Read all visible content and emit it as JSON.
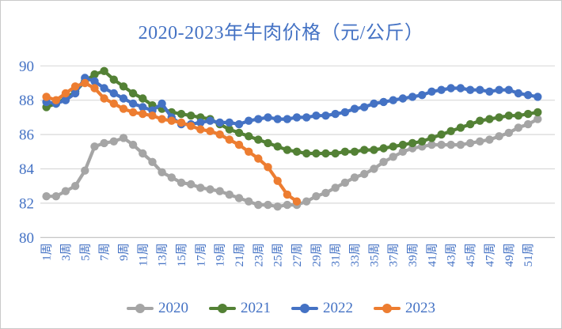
{
  "styles": {
    "text_color": "#4472C4",
    "grid_color": "#D9D9D9",
    "axis_color": "#BFBFBF",
    "background": "#FFFFFF"
  },
  "chart_data": {
    "type": "line",
    "title": "2020-2023年牛肉价格（元/公斤）",
    "xlabel": "",
    "ylabel": "",
    "x_unit": "周",
    "ylim": [
      80,
      90
    ],
    "y_ticks": [
      90,
      88,
      86,
      84,
      82,
      80
    ],
    "x_weeks": [
      1,
      52
    ],
    "x_tick_step": 2,
    "x_tick_labels": [
      "1周",
      "3周",
      "5周",
      "7周",
      "9周",
      "11周",
      "13周",
      "15周",
      "17周",
      "19周",
      "21周",
      "23周",
      "25周",
      "27周",
      "29周",
      "31周",
      "33周",
      "35周",
      "37周",
      "39周",
      "41周",
      "43周",
      "45周",
      "47周",
      "49周",
      "51周"
    ],
    "grid": "horizontal",
    "legend_position": "bottom",
    "marker": "circle",
    "series": [
      {
        "name": "2020",
        "color": "#A5A5A5",
        "start_week": 1,
        "values": [
          82.4,
          82.4,
          82.7,
          83.0,
          83.9,
          85.3,
          85.5,
          85.6,
          85.8,
          85.4,
          84.9,
          84.4,
          83.8,
          83.5,
          83.2,
          83.1,
          82.9,
          82.8,
          82.7,
          82.5,
          82.3,
          82.1,
          81.9,
          81.9,
          81.8,
          81.9,
          81.9,
          82.1,
          82.4,
          82.6,
          82.9,
          83.2,
          83.5,
          83.7,
          84.0,
          84.4,
          84.7,
          85.0,
          85.2,
          85.3,
          85.4,
          85.4,
          85.4,
          85.4,
          85.5,
          85.6,
          85.7,
          85.9,
          86.1,
          86.4,
          86.6,
          86.9
        ]
      },
      {
        "name": "2021",
        "color": "#538135",
        "start_week": 1,
        "values": [
          87.6,
          87.8,
          88.1,
          88.5,
          89.1,
          89.5,
          89.7,
          89.2,
          88.8,
          88.4,
          88.1,
          87.7,
          87.5,
          87.3,
          87.2,
          87.1,
          87.0,
          86.9,
          86.6,
          86.3,
          86.1,
          85.9,
          85.7,
          85.5,
          85.3,
          85.1,
          85.0,
          84.9,
          84.9,
          84.9,
          84.9,
          85.0,
          85.0,
          85.1,
          85.1,
          85.2,
          85.3,
          85.4,
          85.5,
          85.6,
          85.8,
          86.0,
          86.2,
          86.4,
          86.6,
          86.8,
          86.9,
          87.0,
          87.1,
          87.1,
          87.2,
          87.3
        ]
      },
      {
        "name": "2022",
        "color": "#4472C4",
        "start_week": 1,
        "values": [
          87.9,
          87.8,
          88.0,
          88.4,
          89.3,
          89.1,
          88.7,
          88.4,
          88.1,
          87.8,
          87.6,
          87.4,
          87.8,
          87.0,
          86.6,
          86.6,
          86.7,
          86.8,
          86.7,
          86.7,
          86.6,
          86.8,
          86.9,
          87.0,
          86.9,
          86.9,
          87.0,
          87.0,
          87.1,
          87.1,
          87.2,
          87.3,
          87.5,
          87.6,
          87.8,
          87.9,
          88.0,
          88.1,
          88.2,
          88.3,
          88.5,
          88.6,
          88.7,
          88.7,
          88.6,
          88.6,
          88.5,
          88.6,
          88.6,
          88.4,
          88.3,
          88.2
        ]
      },
      {
        "name": "2023",
        "color": "#ED7D31",
        "start_week": 1,
        "values": [
          88.2,
          88.0,
          88.4,
          88.8,
          89.0,
          88.7,
          88.1,
          87.8,
          87.5,
          87.3,
          87.2,
          87.1,
          86.9,
          86.8,
          86.7,
          86.5,
          86.3,
          86.2,
          86.0,
          85.7,
          85.4,
          85.0,
          84.6,
          84.1,
          83.3,
          82.5,
          82.1
        ]
      }
    ]
  }
}
